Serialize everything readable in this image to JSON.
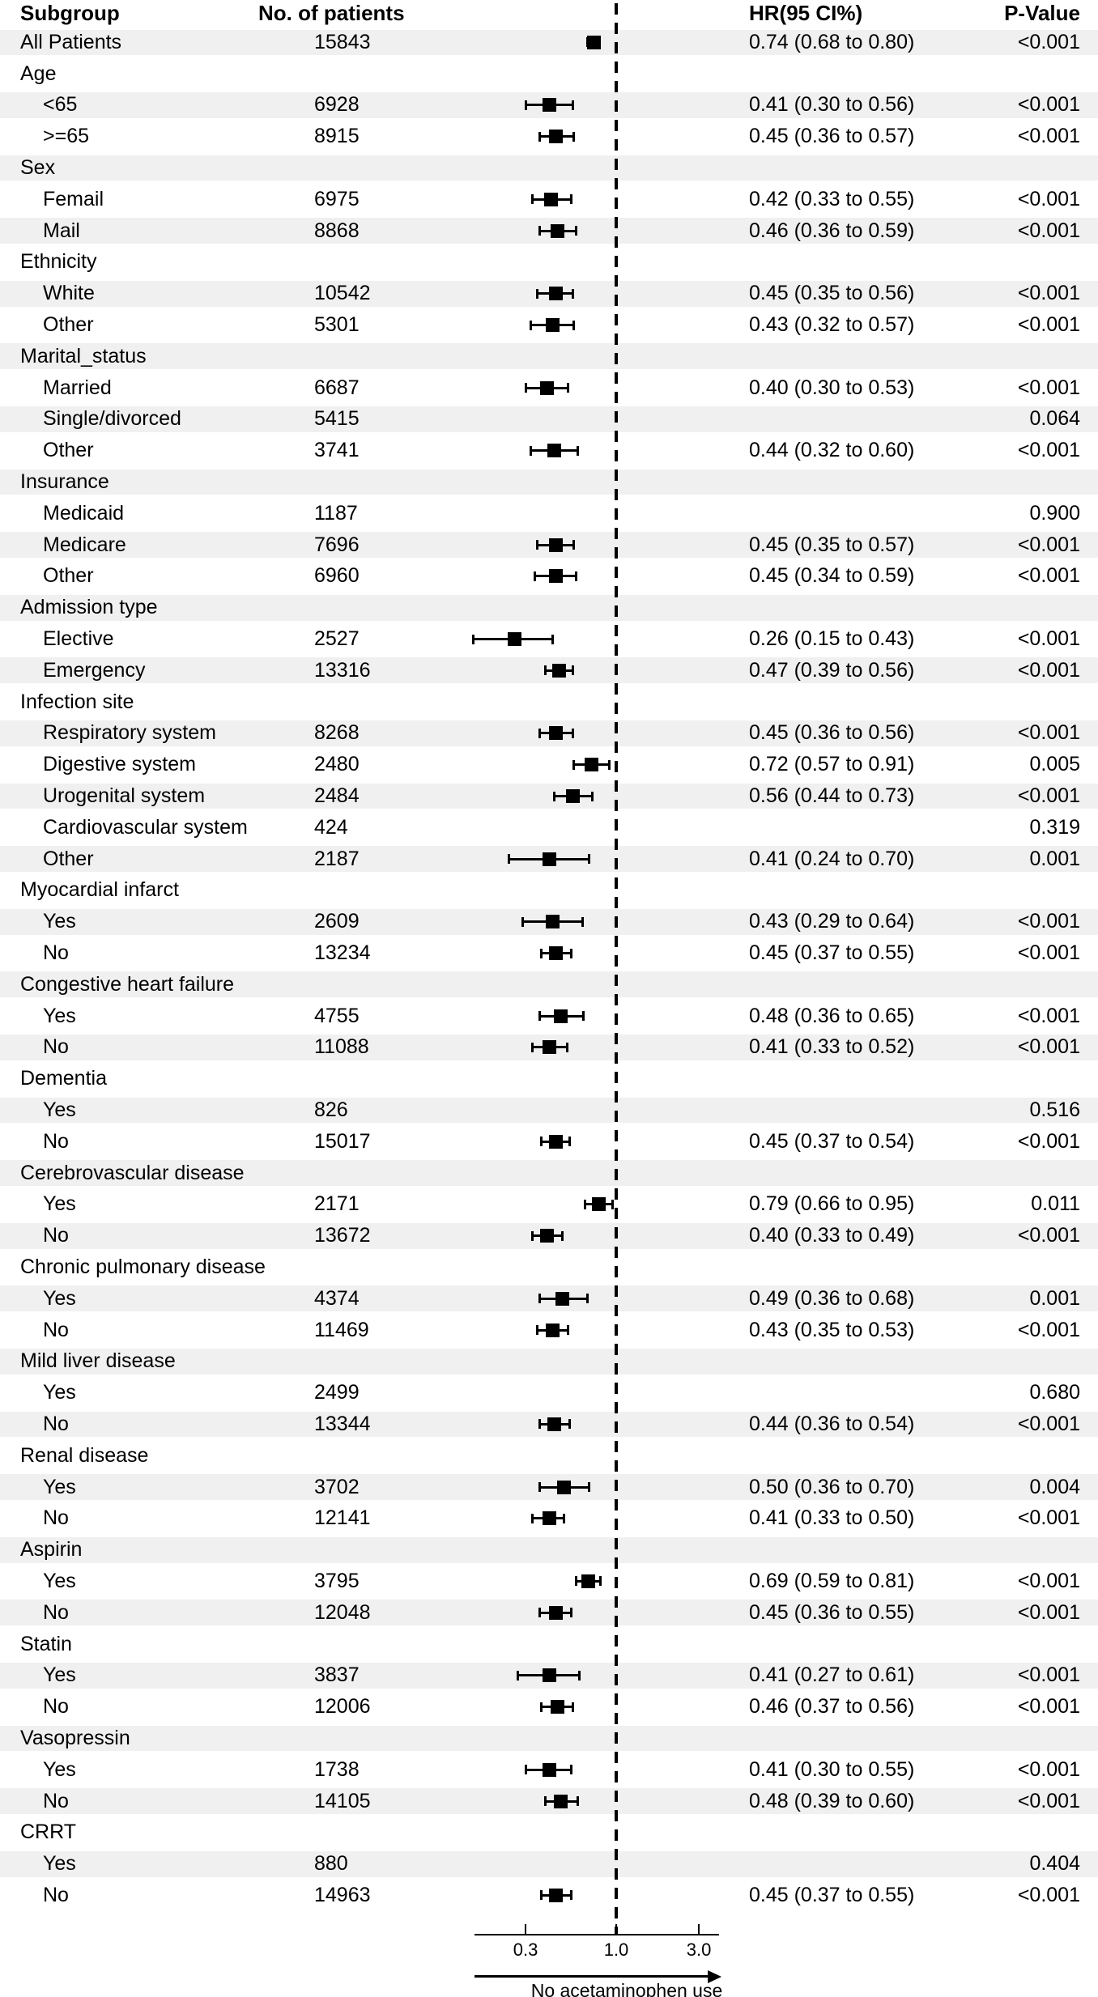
{
  "header": {
    "subgroup": "Subgroup",
    "patients": "No. of patients",
    "hr": "HR(95 CI%)",
    "pvalue": "P-Value"
  },
  "colors": {
    "stripe": "#f0f0f0",
    "ink": "#000000"
  },
  "chart_data": {
    "type": "scatter",
    "variant": "forest-plot",
    "xscale": "log",
    "xlim": [
      0.15,
      3.9
    ],
    "xticks": [
      0.3,
      1.0,
      3.0
    ],
    "xtick_labels": [
      "0.3",
      "1.0",
      "3.0"
    ],
    "reference_line": 1.0,
    "arrow_label": "No acetaminophen use",
    "columns": [
      "Subgroup",
      "No. of patients",
      "HR(95 CI%)",
      "P-Value"
    ],
    "rows": [
      {
        "label": "All Patients",
        "indent": false,
        "n": "15843",
        "hr": 0.74,
        "lo": 0.68,
        "hi": 0.8,
        "ci": "0.74 (0.68 to 0.80)",
        "p": "<0.001"
      },
      {
        "label": "Age",
        "section": true
      },
      {
        "label": "<65",
        "indent": true,
        "n": "6928",
        "hr": 0.41,
        "lo": 0.3,
        "hi": 0.56,
        "ci": "0.41 (0.30 to 0.56)",
        "p": "<0.001"
      },
      {
        "label": ">=65",
        "indent": true,
        "n": "8915",
        "hr": 0.45,
        "lo": 0.36,
        "hi": 0.57,
        "ci": "0.45 (0.36 to 0.57)",
        "p": "<0.001"
      },
      {
        "label": "Sex",
        "section": true
      },
      {
        "label": "Femail",
        "indent": true,
        "n": "6975",
        "hr": 0.42,
        "lo": 0.33,
        "hi": 0.55,
        "ci": "0.42 (0.33 to 0.55)",
        "p": "<0.001"
      },
      {
        "label": "Mail",
        "indent": true,
        "n": "8868",
        "hr": 0.46,
        "lo": 0.36,
        "hi": 0.59,
        "ci": "0.46 (0.36 to 0.59)",
        "p": "<0.001"
      },
      {
        "label": "Ethnicity",
        "section": true
      },
      {
        "label": "White",
        "indent": true,
        "n": "10542",
        "hr": 0.45,
        "lo": 0.35,
        "hi": 0.56,
        "ci": "0.45 (0.35 to 0.56)",
        "p": "<0.001"
      },
      {
        "label": "Other",
        "indent": true,
        "n": "5301",
        "hr": 0.43,
        "lo": 0.32,
        "hi": 0.57,
        "ci": "0.43 (0.32 to 0.57)",
        "p": "<0.001"
      },
      {
        "label": "Marital_status",
        "section": true
      },
      {
        "label": "Married",
        "indent": true,
        "n": "6687",
        "hr": 0.4,
        "lo": 0.3,
        "hi": 0.53,
        "ci": "0.40 (0.30 to 0.53)",
        "p": "<0.001"
      },
      {
        "label": "Single/divorced",
        "indent": true,
        "n": "5415",
        "p": "0.064"
      },
      {
        "label": "Other",
        "indent": true,
        "n": "3741",
        "hr": 0.44,
        "lo": 0.32,
        "hi": 0.6,
        "ci": "0.44 (0.32 to 0.60)",
        "p": "<0.001"
      },
      {
        "label": "Insurance",
        "section": true
      },
      {
        "label": "Medicaid",
        "indent": true,
        "n": "1187",
        "p": "0.900"
      },
      {
        "label": "Medicare",
        "indent": true,
        "n": "7696",
        "hr": 0.45,
        "lo": 0.35,
        "hi": 0.57,
        "ci": "0.45 (0.35 to 0.57)",
        "p": "<0.001"
      },
      {
        "label": "Other",
        "indent": true,
        "n": "6960",
        "hr": 0.45,
        "lo": 0.34,
        "hi": 0.59,
        "ci": "0.45 (0.34 to 0.59)",
        "p": "<0.001"
      },
      {
        "label": "Admission type",
        "section": true
      },
      {
        "label": "Elective",
        "indent": true,
        "n": "2527",
        "hr": 0.26,
        "lo": 0.15,
        "hi": 0.43,
        "ci": "0.26 (0.15 to 0.43)",
        "p": "<0.001"
      },
      {
        "label": "Emergency",
        "indent": true,
        "n": "13316",
        "hr": 0.47,
        "lo": 0.39,
        "hi": 0.56,
        "ci": "0.47 (0.39 to 0.56)",
        "p": "<0.001"
      },
      {
        "label": "Infection site",
        "section": true
      },
      {
        "label": "Respiratory system",
        "indent": true,
        "n": "8268",
        "hr": 0.45,
        "lo": 0.36,
        "hi": 0.56,
        "ci": "0.45 (0.36 to 0.56)",
        "p": "<0.001"
      },
      {
        "label": "Digestive system",
        "indent": true,
        "n": "2480",
        "hr": 0.72,
        "lo": 0.57,
        "hi": 0.91,
        "ci": "0.72 (0.57 to 0.91)",
        "p": "0.005"
      },
      {
        "label": "Urogenital system",
        "indent": true,
        "n": "2484",
        "hr": 0.56,
        "lo": 0.44,
        "hi": 0.73,
        "ci": "0.56 (0.44 to 0.73)",
        "p": "<0.001"
      },
      {
        "label": "Cardiovascular system",
        "indent": true,
        "n": "424",
        "p": "0.319"
      },
      {
        "label": "Other",
        "indent": true,
        "n": "2187",
        "hr": 0.41,
        "lo": 0.24,
        "hi": 0.7,
        "ci": "0.41 (0.24 to 0.70)",
        "p": "0.001"
      },
      {
        "label": "Myocardial infarct",
        "section": true
      },
      {
        "label": "Yes",
        "indent": true,
        "n": "2609",
        "hr": 0.43,
        "lo": 0.29,
        "hi": 0.64,
        "ci": "0.43 (0.29 to 0.64)",
        "p": "<0.001"
      },
      {
        "label": "No",
        "indent": true,
        "n": "13234",
        "hr": 0.45,
        "lo": 0.37,
        "hi": 0.55,
        "ci": "0.45 (0.37 to 0.55)",
        "p": "<0.001"
      },
      {
        "label": "Congestive heart failure",
        "section": true
      },
      {
        "label": "Yes",
        "indent": true,
        "n": "4755",
        "hr": 0.48,
        "lo": 0.36,
        "hi": 0.65,
        "ci": "0.48 (0.36 to 0.65)",
        "p": "<0.001"
      },
      {
        "label": "No",
        "indent": true,
        "n": "11088",
        "hr": 0.41,
        "lo": 0.33,
        "hi": 0.52,
        "ci": "0.41 (0.33 to 0.52)",
        "p": "<0.001"
      },
      {
        "label": "Dementia",
        "section": true
      },
      {
        "label": "Yes",
        "indent": true,
        "n": "826",
        "p": "0.516"
      },
      {
        "label": "No",
        "indent": true,
        "n": "15017",
        "hr": 0.45,
        "lo": 0.37,
        "hi": 0.54,
        "ci": "0.45 (0.37 to 0.54)",
        "p": "<0.001"
      },
      {
        "label": "Cerebrovascular disease",
        "section": true
      },
      {
        "label": "Yes",
        "indent": true,
        "n": "2171",
        "hr": 0.79,
        "lo": 0.66,
        "hi": 0.95,
        "ci": "0.79 (0.66 to 0.95)",
        "p": "0.011"
      },
      {
        "label": "No",
        "indent": true,
        "n": "13672",
        "hr": 0.4,
        "lo": 0.33,
        "hi": 0.49,
        "ci": "0.40 (0.33 to 0.49)",
        "p": "<0.001"
      },
      {
        "label": "Chronic pulmonary disease",
        "section": true
      },
      {
        "label": "Yes",
        "indent": true,
        "n": "4374",
        "hr": 0.49,
        "lo": 0.36,
        "hi": 0.68,
        "ci": "0.49 (0.36 to 0.68)",
        "p": "0.001"
      },
      {
        "label": "No",
        "indent": true,
        "n": "11469",
        "hr": 0.43,
        "lo": 0.35,
        "hi": 0.53,
        "ci": "0.43 (0.35 to 0.53)",
        "p": "<0.001"
      },
      {
        "label": "Mild liver disease",
        "section": true
      },
      {
        "label": "Yes",
        "indent": true,
        "n": "2499",
        "p": "0.680"
      },
      {
        "label": "No",
        "indent": true,
        "n": "13344",
        "hr": 0.44,
        "lo": 0.36,
        "hi": 0.54,
        "ci": "0.44 (0.36 to 0.54)",
        "p": "<0.001"
      },
      {
        "label": "Renal disease",
        "section": true
      },
      {
        "label": "Yes",
        "indent": true,
        "n": "3702",
        "hr": 0.5,
        "lo": 0.36,
        "hi": 0.7,
        "ci": "0.50 (0.36 to 0.70)",
        "p": "0.004"
      },
      {
        "label": "No",
        "indent": true,
        "n": "12141",
        "hr": 0.41,
        "lo": 0.33,
        "hi": 0.5,
        "ci": "0.41 (0.33 to 0.50)",
        "p": "<0.001"
      },
      {
        "label": "Aspirin",
        "section": true
      },
      {
        "label": "Yes",
        "indent": true,
        "n": "3795",
        "hr": 0.69,
        "lo": 0.59,
        "hi": 0.81,
        "ci": "0.69 (0.59 to 0.81)",
        "p": "<0.001"
      },
      {
        "label": "No",
        "indent": true,
        "n": "12048",
        "hr": 0.45,
        "lo": 0.36,
        "hi": 0.55,
        "ci": "0.45 (0.36 to 0.55)",
        "p": "<0.001"
      },
      {
        "label": "Statin",
        "section": true
      },
      {
        "label": "Yes",
        "indent": true,
        "n": "3837",
        "hr": 0.41,
        "lo": 0.27,
        "hi": 0.61,
        "ci": "0.41 (0.27 to 0.61)",
        "p": "<0.001"
      },
      {
        "label": "No",
        "indent": true,
        "n": "12006",
        "hr": 0.46,
        "lo": 0.37,
        "hi": 0.56,
        "ci": "0.46 (0.37 to 0.56)",
        "p": "<0.001"
      },
      {
        "label": "Vasopressin",
        "section": true
      },
      {
        "label": "Yes",
        "indent": true,
        "n": "1738",
        "hr": 0.41,
        "lo": 0.3,
        "hi": 0.55,
        "ci": "0.41 (0.30 to 0.55)",
        "p": "<0.001"
      },
      {
        "label": "No",
        "indent": true,
        "n": "14105",
        "hr": 0.48,
        "lo": 0.39,
        "hi": 0.6,
        "ci": "0.48 (0.39 to 0.60)",
        "p": "<0.001"
      },
      {
        "label": "CRRT",
        "section": true
      },
      {
        "label": "Yes",
        "indent": true,
        "n": "880",
        "p": "0.404"
      },
      {
        "label": "No",
        "indent": true,
        "n": "14963",
        "hr": 0.45,
        "lo": 0.37,
        "hi": 0.55,
        "ci": "0.45 (0.37 to 0.55)",
        "p": "<0.001"
      }
    ]
  }
}
